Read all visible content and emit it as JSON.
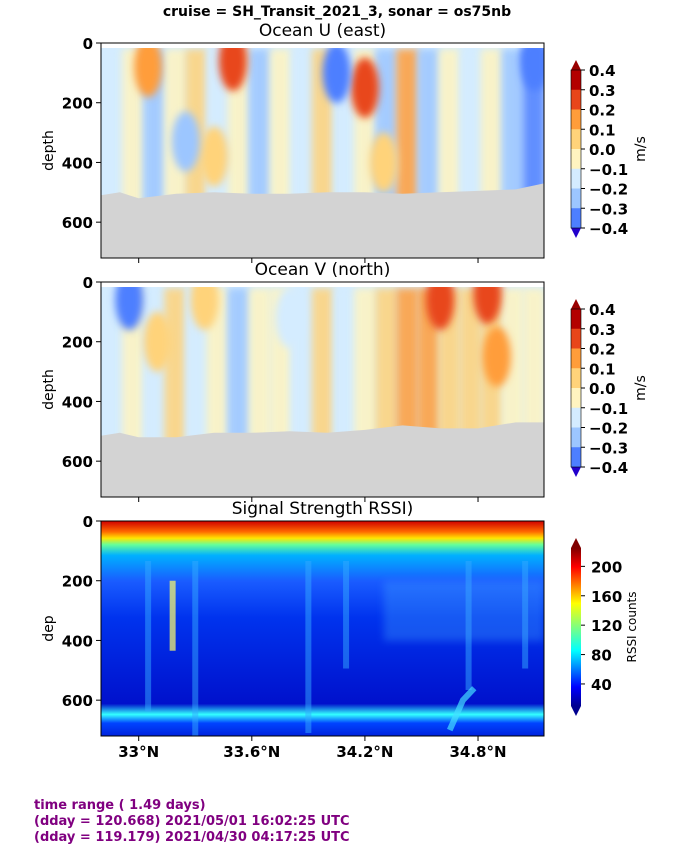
{
  "suptitle": "cruise = SH_Transit_2021_3,  sonar = os75nb",
  "x_ticks": [
    "33°N",
    "33.6°N",
    "34.2°N",
    "34.8°N"
  ],
  "colors": {
    "seafloor": "#d3d3d3",
    "footer": "#800080"
  },
  "footer": {
    "line1": "time range ( 1.49 days)",
    "line2": "(dday = 120.668) 2021/05/01 16:02:25 UTC",
    "line3": "(dday = 119.179) 2021/04/30 04:17:25 UTC"
  },
  "chart_data": [
    {
      "type": "heatmap",
      "title": "Ocean U (east)",
      "ylabel": "depth",
      "y_ticks": [
        "0",
        "200",
        "400",
        "600"
      ],
      "ylim": [
        720,
        0
      ],
      "xlim": [
        32.8,
        35.15
      ],
      "colorbar": {
        "label": "m/s",
        "ticks": [
          "0.4",
          "0.3",
          "0.2",
          "0.1",
          "0.0",
          "−0.1",
          "−0.2",
          "−0.3",
          "−0.4"
        ]
      },
      "colormap": "bwr-contour",
      "bottom_depth": [
        [
          32.8,
          510
        ],
        [
          32.9,
          500
        ],
        [
          33.0,
          520
        ],
        [
          33.2,
          505
        ],
        [
          33.4,
          500
        ],
        [
          33.6,
          505
        ],
        [
          33.8,
          505
        ],
        [
          34.0,
          500
        ],
        [
          34.2,
          500
        ],
        [
          34.4,
          505
        ],
        [
          34.6,
          500
        ],
        [
          34.8,
          495
        ],
        [
          35.0,
          490
        ],
        [
          35.15,
          470
        ]
      ],
      "features": [
        {
          "lat": 33.05,
          "depth": 80,
          "value": 0.25
        },
        {
          "lat": 33.5,
          "depth": 60,
          "value": 0.3
        },
        {
          "lat": 33.4,
          "depth": 380,
          "value": 0.2
        },
        {
          "lat": 34.2,
          "depth": 150,
          "value": 0.3
        },
        {
          "lat": 34.3,
          "depth": 400,
          "value": 0.2
        },
        {
          "lat": 35.1,
          "depth": 60,
          "value": -0.3
        },
        {
          "lat": 34.05,
          "depth": 100,
          "value": -0.25
        },
        {
          "lat": 33.25,
          "depth": 330,
          "value": -0.15
        }
      ]
    },
    {
      "type": "heatmap",
      "title": "Ocean V (north)",
      "ylabel": "depth",
      "y_ticks": [
        "0",
        "200",
        "400",
        "600"
      ],
      "ylim": [
        720,
        0
      ],
      "xlim": [
        32.8,
        35.15
      ],
      "colorbar": {
        "label": "m/s",
        "ticks": [
          "0.4",
          "0.3",
          "0.2",
          "0.1",
          "0.0",
          "−0.1",
          "−0.2",
          "−0.3",
          "−0.4"
        ]
      },
      "colormap": "bwr-contour",
      "bottom_depth": [
        [
          32.8,
          515
        ],
        [
          32.9,
          505
        ],
        [
          33.0,
          520
        ],
        [
          33.2,
          520
        ],
        [
          33.4,
          505
        ],
        [
          33.6,
          505
        ],
        [
          33.8,
          500
        ],
        [
          34.0,
          505
        ],
        [
          34.2,
          495
        ],
        [
          34.4,
          480
        ],
        [
          34.6,
          490
        ],
        [
          34.8,
          490
        ],
        [
          35.0,
          470
        ],
        [
          35.15,
          470
        ]
      ],
      "features": [
        {
          "lat": 34.85,
          "depth": 40,
          "value": 0.35
        },
        {
          "lat": 34.6,
          "depth": 60,
          "value": 0.3
        },
        {
          "lat": 34.9,
          "depth": 250,
          "value": 0.25
        },
        {
          "lat": 33.35,
          "depth": 60,
          "value": 0.2
        },
        {
          "lat": 33.1,
          "depth": 200,
          "value": 0.15
        },
        {
          "lat": 32.95,
          "depth": 60,
          "value": -0.2
        },
        {
          "lat": 33.8,
          "depth": 120,
          "value": -0.1
        }
      ]
    },
    {
      "type": "heatmap",
      "title": "Signal Strength RSSI)",
      "ylabel": "dep",
      "y_ticks": [
        "0",
        "200",
        "400",
        "600"
      ],
      "ylim": [
        720,
        0
      ],
      "xlim": [
        32.8,
        35.15
      ],
      "colorbar": {
        "label": "RSSI counts",
        "ticks": [
          "200",
          "160",
          "120",
          "80",
          "40"
        ]
      },
      "colormap": "jet",
      "bands": [
        {
          "from": 20,
          "to": 50,
          "value": 205
        },
        {
          "from": 50,
          "to": 90,
          "value": 150
        },
        {
          "from": 90,
          "to": 130,
          "value": 100
        },
        {
          "from": 130,
          "to": 260,
          "value": 60
        },
        {
          "from": 260,
          "to": 660,
          "value": 40
        },
        {
          "from": 660,
          "to": 690,
          "value": 110
        },
        {
          "from": 690,
          "to": 720,
          "value": 60
        }
      ]
    }
  ]
}
